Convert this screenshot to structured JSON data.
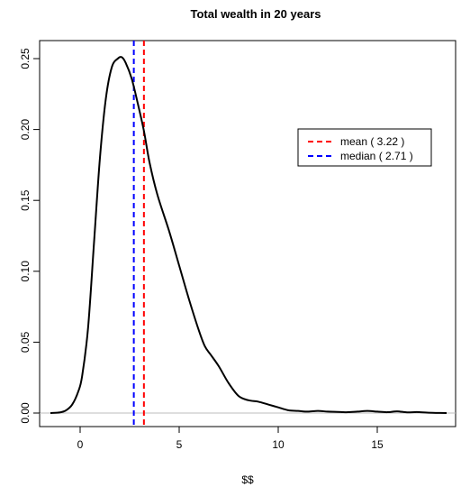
{
  "chart_data": {
    "type": "line",
    "title": "Total wealth in 20 years",
    "xlabel": "$$",
    "ylabel": "",
    "xlim": [
      -1.5,
      18.5
    ],
    "ylim": [
      0,
      0.25
    ],
    "x_ticks": [
      0,
      5,
      10,
      15
    ],
    "y_ticks": [
      0.0,
      0.05,
      0.1,
      0.15,
      0.2,
      0.25
    ],
    "x_tick_labels": [
      "0",
      "5",
      "10",
      "15"
    ],
    "y_tick_labels": [
      "0.00",
      "0.05",
      "0.10",
      "0.15",
      "0.20",
      "0.25"
    ],
    "grid": false,
    "legend_position": "top-right",
    "series": [
      {
        "type": "density",
        "color": "#000000",
        "x": [
          -1.5,
          -1.0,
          -0.7,
          -0.4,
          -0.1,
          0.1,
          0.4,
          0.7,
          1.0,
          1.3,
          1.6,
          1.9,
          2.1,
          2.3,
          2.6,
          2.9,
          3.22,
          3.5,
          3.9,
          4.5,
          5.0,
          5.5,
          6.0,
          6.3,
          6.6,
          7.0,
          7.5,
          8.0,
          8.5,
          9.0,
          9.5,
          10.0,
          10.5,
          11.0,
          11.5,
          12.0,
          12.5,
          13.0,
          13.5,
          14.0,
          14.5,
          15.0,
          15.5,
          16.0,
          16.5,
          17.0,
          17.5,
          18.0,
          18.5
        ],
        "y": [
          0.0,
          0.0005,
          0.002,
          0.006,
          0.015,
          0.026,
          0.06,
          0.12,
          0.18,
          0.222,
          0.244,
          0.25,
          0.251,
          0.247,
          0.236,
          0.219,
          0.199,
          0.177,
          0.154,
          0.128,
          0.104,
          0.08,
          0.058,
          0.047,
          0.041,
          0.033,
          0.021,
          0.012,
          0.009,
          0.008,
          0.006,
          0.004,
          0.002,
          0.0015,
          0.001,
          0.0015,
          0.001,
          0.0008,
          0.0006,
          0.001,
          0.0015,
          0.001,
          0.0006,
          0.0012,
          0.0005,
          0.0007,
          0.0003,
          0.0001,
          0.0
        ]
      }
    ],
    "reference_line": {
      "y": 0,
      "color": "#bebebe"
    },
    "vlines": [
      {
        "name": "mean",
        "x": 3.22,
        "color": "#ff0000",
        "style": "dashed",
        "legend_label": "mean ( 3.22 )"
      },
      {
        "name": "median",
        "x": 2.71,
        "color": "#0000ff",
        "style": "dashed",
        "legend_label": "median ( 2.71 )"
      }
    ]
  }
}
